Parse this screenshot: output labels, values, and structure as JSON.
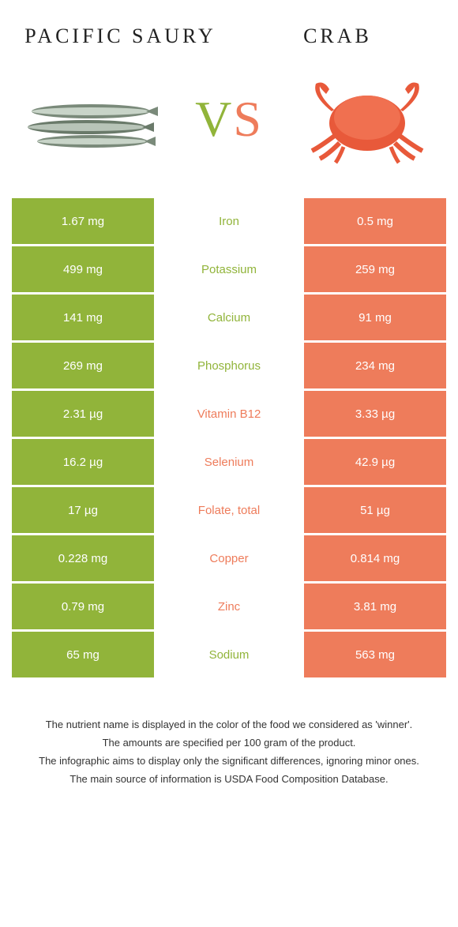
{
  "header": {
    "left": "PACIFIC SAURY",
    "right": "CRAB",
    "vs_v": "V",
    "vs_s": "S"
  },
  "colors": {
    "left_bg": "#91b43a",
    "right_bg": "#ee7c5b",
    "left_text": "#91b43a",
    "right_text": "#ee7c5b",
    "cell_text": "#ffffff",
    "background": "#ffffff",
    "footnote_text": "#333333"
  },
  "rows": [
    {
      "left": "1.67 mg",
      "label": "Iron",
      "right": "0.5 mg",
      "winner": "left"
    },
    {
      "left": "499 mg",
      "label": "Potassium",
      "right": "259 mg",
      "winner": "left"
    },
    {
      "left": "141 mg",
      "label": "Calcium",
      "right": "91 mg",
      "winner": "left"
    },
    {
      "left": "269 mg",
      "label": "Phosphorus",
      "right": "234 mg",
      "winner": "left"
    },
    {
      "left": "2.31 µg",
      "label": "Vitamin B12",
      "right": "3.33 µg",
      "winner": "right"
    },
    {
      "left": "16.2 µg",
      "label": "Selenium",
      "right": "42.9 µg",
      "winner": "right"
    },
    {
      "left": "17 µg",
      "label": "Folate, total",
      "right": "51 µg",
      "winner": "right"
    },
    {
      "left": "0.228 mg",
      "label": "Copper",
      "right": "0.814 mg",
      "winner": "right"
    },
    {
      "left": "0.79 mg",
      "label": "Zinc",
      "right": "3.81 mg",
      "winner": "right"
    },
    {
      "left": "65 mg",
      "label": "Sodium",
      "right": "563 mg",
      "winner": "left"
    }
  ],
  "footnotes": [
    "The nutrient name is displayed in the color of the food we considered as 'winner'.",
    "The amounts are specified per 100 gram of the product.",
    "The infographic aims to display only the significant differences, ignoring minor ones.",
    "The main source of information is USDA Food Composition Database."
  ]
}
